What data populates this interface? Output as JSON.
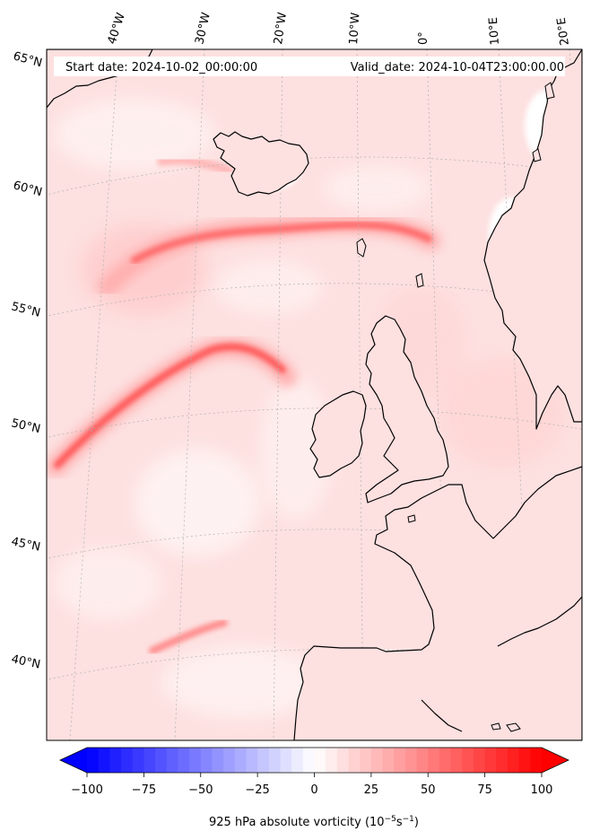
{
  "map": {
    "start_label": "Start date: 2024-10-02_00:00:00",
    "valid_label": "Valid_date: 2024-10-04T23:00:00.00",
    "lon_labels": [
      "40°W",
      "30°W",
      "20°W",
      "10°W",
      "0°",
      "10°E",
      "20°E"
    ],
    "lat_labels": [
      "65°N",
      "60°N",
      "55°N",
      "50°N",
      "45°N",
      "40°N"
    ],
    "colorbar": {
      "ticks": [
        "−100",
        "−75",
        "−50",
        "−25",
        "0",
        "25",
        "50",
        "75",
        "100"
      ],
      "min": -100,
      "max": 100,
      "step": 5,
      "label_main": "925 hPa absolute vorticity (10",
      "label_exp1": "−5",
      "label_mid": "s",
      "label_exp2": "−1",
      "label_end": ")"
    },
    "colors": {
      "negative": "#0000ff",
      "neutral": "#ffffff",
      "positive": "#ff0000",
      "coastline": "#000000"
    }
  }
}
